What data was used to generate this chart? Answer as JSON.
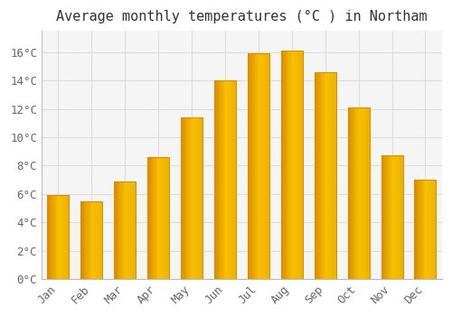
{
  "title": "Average monthly temperatures (°C ) in Northam",
  "months": [
    "Jan",
    "Feb",
    "Mar",
    "Apr",
    "May",
    "Jun",
    "Jul",
    "Aug",
    "Sep",
    "Oct",
    "Nov",
    "Dec"
  ],
  "values": [
    5.9,
    5.5,
    6.9,
    8.6,
    11.4,
    14.0,
    15.9,
    16.1,
    14.6,
    12.1,
    8.7,
    7.0
  ],
  "bar_color_main": "#FFA020",
  "bar_color_light": "#FFB830",
  "bar_edge_color": "#E08800",
  "background_color": "#FFFFFF",
  "plot_bg_color": "#F5F5F5",
  "grid_color": "#DCDCDC",
  "text_color": "#666666",
  "title_color": "#333333",
  "ylim": [
    0,
    17.5
  ],
  "ytick_step": 2,
  "title_fontsize": 11,
  "tick_fontsize": 9,
  "bar_width": 0.65
}
